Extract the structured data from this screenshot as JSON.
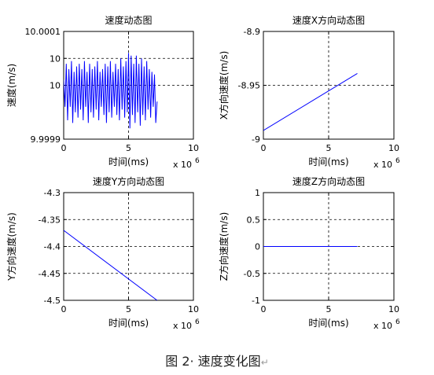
{
  "caption": {
    "text": "图 2· 速度变化图",
    "mark": "↵"
  },
  "chart_data": [
    {
      "type": "line",
      "title": "速度动态图",
      "xlabel": "时间(ms)",
      "ylabel": "速度(m/s)",
      "x_multiplier": "x 10",
      "x_exponent": "6",
      "xlim": [
        0,
        10
      ],
      "ylim": [
        9.9999,
        10.0001
      ],
      "x_ticks": [
        0,
        5,
        10
      ],
      "x_tick_labels": [
        "0",
        "5",
        "10"
      ],
      "y_ticks": [
        9.9999,
        10.0,
        10.00005,
        10.0001
      ],
      "y_tick_labels": [
        "9.9999",
        "10",
        "10",
        "10.0001"
      ],
      "grid": true,
      "line_color": "#0000ff",
      "series": [
        {
          "x": [
            0.0,
            0.1,
            0.2,
            0.3,
            0.4,
            0.5,
            0.6,
            0.7,
            0.8,
            0.9,
            1.0,
            1.1,
            1.2,
            1.3,
            1.4,
            1.5,
            1.6,
            1.7,
            1.8,
            1.9,
            2.0,
            2.1,
            2.2,
            2.3,
            2.4,
            2.5,
            2.6,
            2.7,
            2.8,
            2.9,
            3.0,
            3.1,
            3.2,
            3.3,
            3.4,
            3.5,
            3.6,
            3.7,
            3.8,
            3.9,
            4.0,
            4.1,
            4.2,
            4.3,
            4.4,
            4.5,
            4.6,
            4.7,
            4.8,
            4.9,
            5.0,
            5.1,
            5.2,
            5.3,
            5.4,
            5.5,
            5.6,
            5.7,
            5.8,
            5.9,
            6.0,
            6.1,
            6.2,
            6.3,
            6.4,
            6.5,
            6.6,
            6.7,
            6.8,
            6.9,
            7.0,
            7.1,
            7.2
          ],
          "y": [
            10.00001,
            9.99996,
            10.00004,
            9.999935,
            10.00003,
            9.99996,
            10.000045,
            9.99993,
            10.000025,
            9.99995,
            10.000035,
            9.99994,
            10.00004,
            9.999955,
            10.00003,
            9.999935,
            10.000045,
            9.99996,
            10.000025,
            9.99993,
            10.00004,
            9.99995,
            10.00003,
            9.99994,
            10.000035,
            9.999955,
            10.000045,
            9.999935,
            10.000025,
            9.99996,
            10.00003,
            9.999945,
            10.00004,
            9.99993,
            10.000035,
            9.99995,
            10.000045,
            9.99994,
            10.000025,
            9.99996,
            10.00004,
            9.999945,
            10.00003,
            9.999935,
            10.00005,
            9.999955,
            10.000035,
            9.99994,
            10.000045,
            9.99995,
            10.00006,
            9.99992,
            10.000055,
            9.999945,
            10.00004,
            9.99993,
            10.000055,
            9.99995,
            10.00004,
            9.999925,
            10.00005,
            9.999945,
            10.000035,
            9.999935,
            10.000045,
            9.999955,
            10.00003,
            9.99994,
            10.000025,
            9.99996,
            10.00002,
            9.99993,
            9.99997
          ]
        }
      ]
    },
    {
      "type": "line",
      "title": "速度X方向动态图",
      "xlabel": "时间(ms)",
      "ylabel": "X方向速度(m/s)",
      "x_multiplier": "x 10",
      "x_exponent": "6",
      "xlim": [
        0,
        10
      ],
      "ylim": [
        -9.0,
        -8.9
      ],
      "x_ticks": [
        0,
        5,
        10
      ],
      "x_tick_labels": [
        "0",
        "5",
        "10"
      ],
      "y_ticks": [
        -9.0,
        -8.95,
        -8.9
      ],
      "y_tick_labels": [
        "-9",
        "-8.95",
        "-8.9"
      ],
      "grid": true,
      "line_color": "#0000ff",
      "series": [
        {
          "x": [
            0,
            7.2
          ],
          "y": [
            -8.992,
            -8.939
          ]
        }
      ]
    },
    {
      "type": "line",
      "title": "速度Y方向动态图",
      "xlabel": "时间(ms)",
      "ylabel": "Y方向速度(m/s)",
      "x_multiplier": "x 10",
      "x_exponent": "6",
      "xlim": [
        0,
        10
      ],
      "ylim": [
        -4.5,
        -4.3
      ],
      "x_ticks": [
        0,
        5,
        10
      ],
      "x_tick_labels": [
        "0",
        "5",
        "10"
      ],
      "y_ticks": [
        -4.5,
        -4.45,
        -4.4,
        -4.35,
        -4.3
      ],
      "y_tick_labels": [
        "-4.5",
        "-4.45",
        "-4.4",
        "-4.35",
        "-4.3"
      ],
      "grid": true,
      "line_color": "#0000ff",
      "series": [
        {
          "x": [
            0,
            7.2
          ],
          "y": [
            -4.37,
            -4.5
          ]
        }
      ]
    },
    {
      "type": "line",
      "title": "速度Z方向动态图",
      "xlabel": "时间(ms)",
      "ylabel": "Z方向速度(m/s)",
      "x_multiplier": "x 10",
      "x_exponent": "6",
      "xlim": [
        0,
        10
      ],
      "ylim": [
        -1,
        1
      ],
      "x_ticks": [
        0,
        5,
        10
      ],
      "x_tick_labels": [
        "0",
        "5",
        "10"
      ],
      "y_ticks": [
        -1,
        -0.5,
        0,
        0.5,
        1
      ],
      "y_tick_labels": [
        "-1",
        "-0.5",
        "0",
        "0.5",
        "1"
      ],
      "grid": true,
      "line_color": "#0000ff",
      "series": [
        {
          "x": [
            0,
            7.2
          ],
          "y": [
            0,
            0
          ]
        }
      ]
    }
  ]
}
